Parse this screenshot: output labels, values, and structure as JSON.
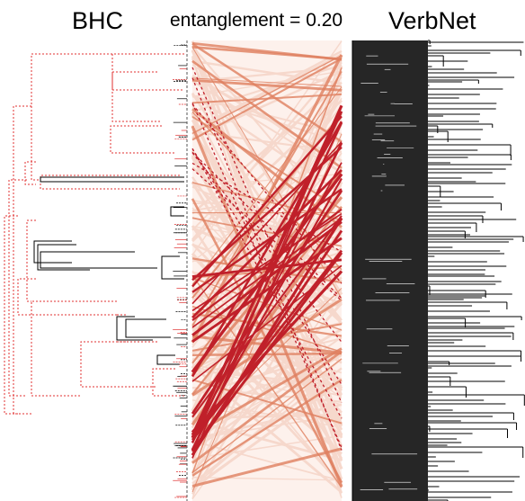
{
  "left_title": "BHC",
  "center_label": "entanglement = 0.20",
  "right_title": "VerbNet",
  "colors": {
    "tree_dashed": "#e03030",
    "tree_solid": "#000000",
    "connector_dark": "#c0202a",
    "connector_mid": "#e08060",
    "connector_light": "#f6d8cc",
    "panel_background": "#fdf1ec",
    "right_block": "#262626"
  }
}
